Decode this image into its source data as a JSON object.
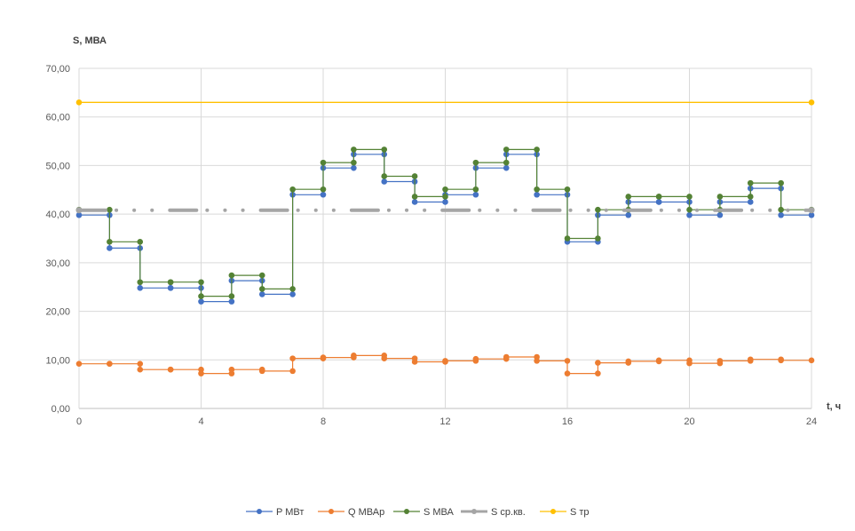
{
  "chart_data": {
    "type": "line",
    "title": "",
    "xlabel": "t, ч",
    "ylabel": "S, МВА",
    "xlim": [
      0,
      24
    ],
    "ylim": [
      0,
      70
    ],
    "x_ticks": [
      "0",
      "4",
      "8",
      "12",
      "16",
      "20",
      "24"
    ],
    "y_ticks": [
      "0,00",
      "10,00",
      "20,00",
      "30,00",
      "40,00",
      "50,00",
      "60,00",
      "70,00"
    ],
    "grid": true,
    "legend_position": "bottom",
    "series": [
      {
        "name": "P МВт",
        "color": "#4472C4",
        "style": "step",
        "values": [
          39.8,
          33.0,
          24.8,
          24.8,
          22.0,
          26.3,
          23.5,
          44.0,
          49.5,
          52.3,
          46.7,
          42.5,
          44.0,
          49.5,
          52.3,
          44.0,
          34.3,
          39.8,
          42.5,
          42.5,
          39.8,
          42.5,
          45.3,
          39.8
        ]
      },
      {
        "name": "Q МВАр",
        "color": "#ED7D31",
        "style": "step",
        "values": [
          9.2,
          9.2,
          8.0,
          8.0,
          7.2,
          8.0,
          7.7,
          10.3,
          10.5,
          10.9,
          10.3,
          9.6,
          9.8,
          10.2,
          10.6,
          9.8,
          7.2,
          9.4,
          9.7,
          9.9,
          9.3,
          9.8,
          10.1,
          9.9
        ]
      },
      {
        "name": "S МВА",
        "color": "#548235",
        "style": "step",
        "values": [
          40.9,
          34.3,
          26.0,
          26.0,
          23.1,
          27.4,
          24.6,
          45.1,
          50.6,
          53.3,
          47.8,
          43.6,
          45.1,
          50.6,
          53.3,
          45.1,
          35.0,
          40.9,
          43.6,
          43.6,
          40.9,
          43.6,
          46.4,
          40.9
        ]
      },
      {
        "name": "S ср.кв.",
        "color": "#A5A5A5",
        "style": "dashed",
        "values": [
          40.8,
          40.8
        ]
      },
      {
        "name": "S тр",
        "color": "#FFC000",
        "style": "solid",
        "values": [
          63.0,
          63.0
        ]
      }
    ]
  }
}
